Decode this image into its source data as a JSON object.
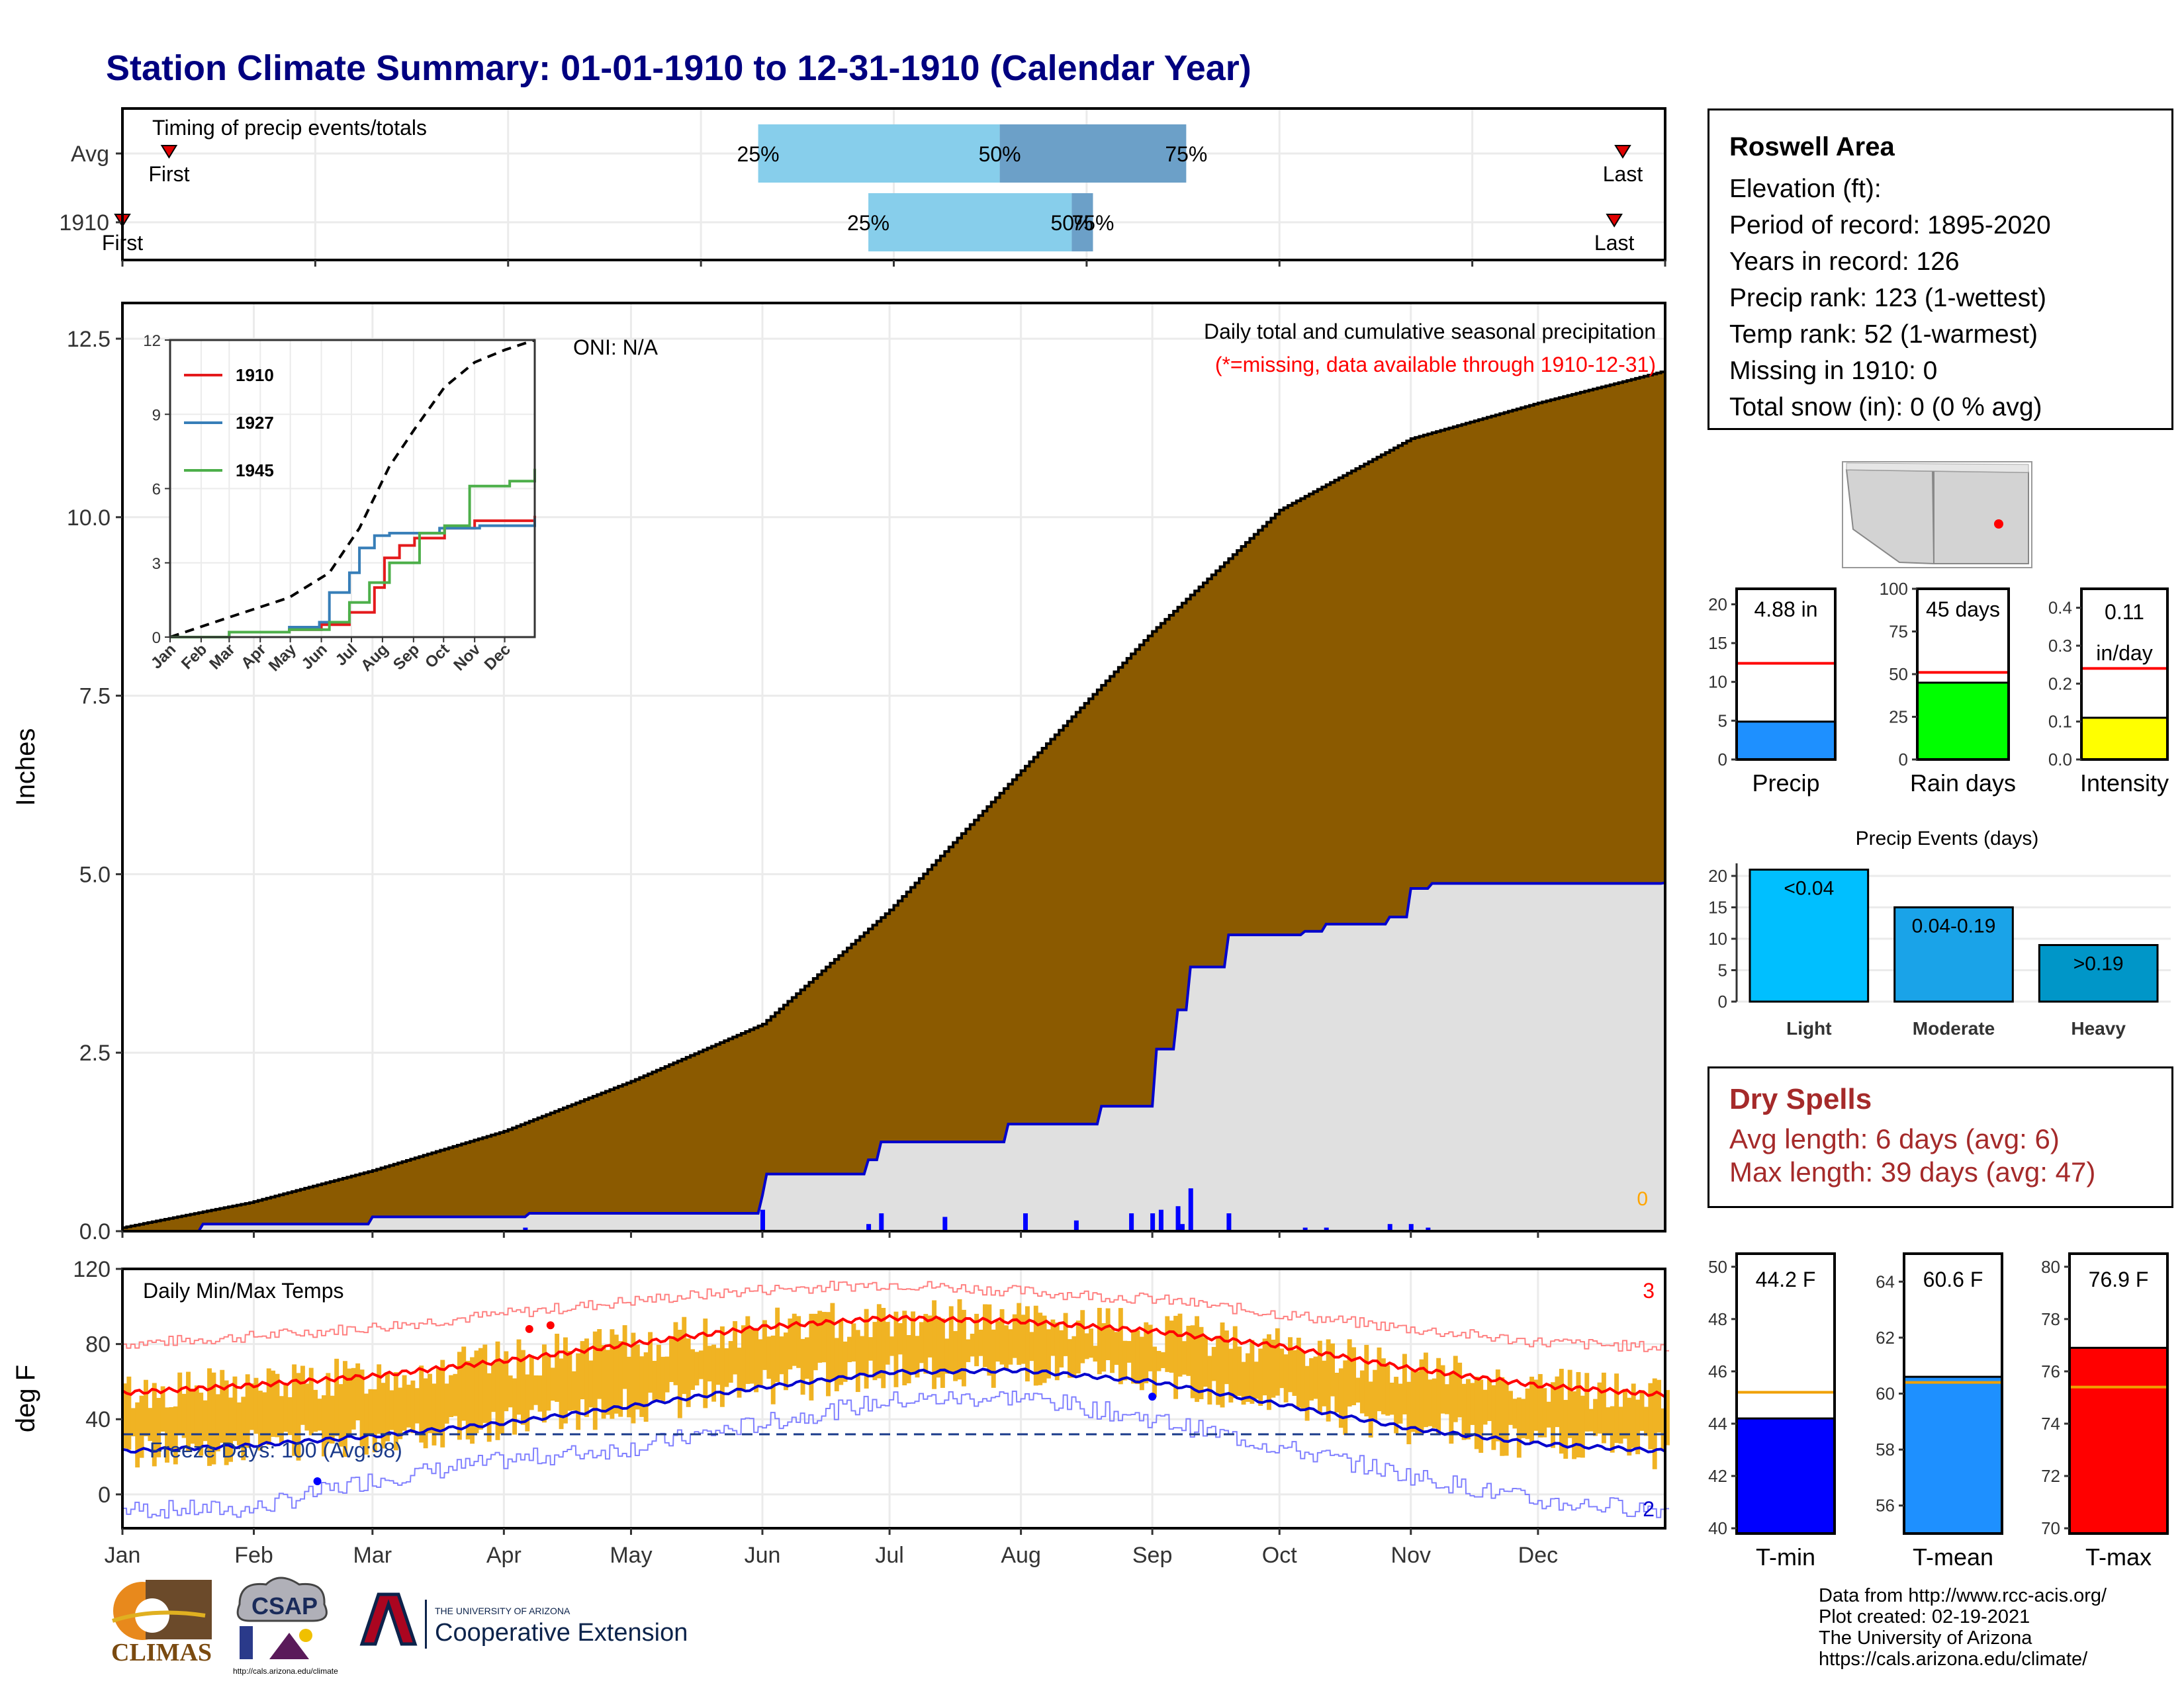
{
  "title": "Station Climate Summary: 01-01-1910 to 12-31-1910 (Calendar Year)",
  "station": {
    "name": "Roswell Area",
    "lines": [
      "Elevation (ft):",
      "Period of record: 1895-2020",
      "Years in record: 126",
      "Precip rank: 123 (1-wettest)",
      "Temp rank: 52 (1-warmest)",
      "Missing in 1910: 0",
      "Total snow (in): 0 (0 % avg)"
    ]
  },
  "dry_spells": {
    "title": "Dry Spells",
    "avg_length": "Avg length: 6 days (avg: 6)",
    "max_length": "Max length: 39 days (avg: 47)"
  },
  "credits": [
    "Data from http://www.rcc-acis.org/",
    "Plot created: 02-19-2021",
    "The University of Arizona",
    "https://cals.arizona.edu/climate/"
  ],
  "logos": {
    "climas": "CLIMAS",
    "csap": "CSAP",
    "csap_url": "http://cals.arizona.edu/climate",
    "ua_small": "THE UNIVERSITY OF ARIZONA",
    "ua_big": "Cooperative Extension"
  },
  "months": [
    "Jan",
    "Feb",
    "Mar",
    "Apr",
    "May",
    "Jun",
    "Jul",
    "Aug",
    "Sep",
    "Oct",
    "Nov",
    "Dec"
  ],
  "colors": {
    "avg_fill": "#8b5a00",
    "year_fill": "#e0e0e0",
    "year_line": "#0000cd",
    "temp_band": "#f0b323",
    "tmax_line": "#ff0000",
    "tmin_line": "#0000cd",
    "light_blue": "#87ceeb",
    "mid_blue": "#6ca0c8"
  },
  "chart_data": [
    {
      "id": "timing",
      "type": "bar",
      "title": "Timing of precip events/totals",
      "rows": [
        "Avg",
        "1910"
      ],
      "labels": {
        "p25": "25%",
        "p50": "50%",
        "p75": "75%",
        "first": "First",
        "last": "Last"
      },
      "avg": {
        "first_day": 12,
        "p25_day": 151,
        "p50_day": 208,
        "p75_day": 252,
        "last_day": 355
      },
      "year": {
        "first_day": 1,
        "p25_day": 177,
        "p50_day": 225,
        "p75_day": 230,
        "last_day": 353
      }
    },
    {
      "id": "precip",
      "type": "area",
      "ylabel": "Inches",
      "ylim": [
        0,
        13.0
      ],
      "yticks": [
        0.0,
        2.5,
        5.0,
        7.5,
        10.0,
        12.5
      ],
      "ytick_labels": [
        "0.0",
        "2.5",
        "5.0",
        "7.5",
        "10.0",
        "12.5"
      ],
      "annotation_title": "Daily total and cumulative seasonal precipitation",
      "annotation_missing": "(*=missing, data available through 1910-12-31)",
      "oni": "ONI: N/A",
      "missing_count": "0",
      "avg_cumulative": {
        "day": [
          1,
          31,
          60,
          91,
          121,
          152,
          182,
          213,
          244,
          274,
          305,
          335,
          365
        ],
        "value": [
          0.05,
          0.4,
          0.85,
          1.4,
          2.1,
          2.9,
          4.5,
          6.45,
          8.4,
          10.1,
          11.1,
          11.6,
          12.05
        ]
      },
      "year_cumulative": {
        "day": [
          1,
          20,
          60,
          96,
          97,
          125,
          152,
          153,
          175,
          177,
          180,
          210,
          232,
          245,
          250,
          253,
          262,
          280,
          285,
          300,
          305,
          310,
          365
        ],
        "value": [
          0.0,
          0.1,
          0.2,
          0.2,
          0.25,
          0.25,
          0.5,
          0.8,
          0.8,
          1.0,
          1.25,
          1.5,
          1.75,
          2.55,
          3.1,
          3.7,
          4.15,
          4.2,
          4.3,
          4.4,
          4.8,
          4.87,
          4.88
        ]
      },
      "daily": {
        "day": [
          96,
          152,
          177,
          180,
          195,
          214,
          226,
          239,
          244,
          246,
          250,
          251,
          253,
          262,
          280,
          285,
          300,
          305,
          309
        ],
        "value": [
          0.05,
          0.3,
          0.1,
          0.25,
          0.2,
          0.25,
          0.15,
          0.25,
          0.25,
          0.3,
          0.35,
          0.1,
          0.6,
          0.25,
          0.05,
          0.05,
          0.1,
          0.1,
          0.05
        ]
      }
    },
    {
      "id": "inset",
      "type": "line",
      "ylim": [
        0,
        12
      ],
      "yticks": [
        0,
        3,
        6,
        9,
        12
      ],
      "series": [
        {
          "name": "1910",
          "color": "#e41a1c",
          "day": [
            1,
            60,
            120,
            152,
            180,
            205,
            215,
            230,
            245,
            275,
            305,
            365
          ],
          "value": [
            0,
            0.2,
            0.3,
            0.5,
            1.0,
            2.0,
            3.2,
            3.7,
            4.0,
            4.4,
            4.7,
            4.9
          ]
        },
        {
          "name": "1927",
          "color": "#377eb8",
          "day": [
            1,
            60,
            120,
            150,
            160,
            180,
            190,
            205,
            220,
            270,
            310,
            365
          ],
          "value": [
            0,
            0.2,
            0.4,
            0.6,
            1.8,
            2.6,
            3.6,
            4.1,
            4.2,
            4.4,
            4.5,
            4.8
          ]
        },
        {
          "name": "1945",
          "color": "#4daf4a",
          "day": [
            1,
            60,
            120,
            160,
            180,
            200,
            220,
            250,
            275,
            300,
            340,
            365
          ],
          "value": [
            0,
            0.2,
            0.3,
            0.6,
            1.4,
            2.2,
            3.0,
            4.2,
            4.5,
            6.1,
            6.3,
            6.8
          ]
        }
      ],
      "avg": {
        "day": [
          1,
          60,
          120,
          160,
          190,
          220,
          245,
          275,
          305,
          335,
          365
        ],
        "value": [
          0,
          0.8,
          1.6,
          2.6,
          4.4,
          6.9,
          8.4,
          10.1,
          11.1,
          11.6,
          12.0
        ]
      }
    },
    {
      "id": "temps",
      "type": "line",
      "title": "Daily Min/Max Temps",
      "ylabel": "deg F",
      "ylim": [
        -18,
        120
      ],
      "yticks": [
        0,
        40,
        80,
        120
      ],
      "freeze_label": "Freeze Days: 100 (Avg:98)",
      "freeze_line": 32,
      "record_high_count": "3",
      "record_low_count": "2",
      "tmax_avg": {
        "day": [
          1,
          31,
          60,
          91,
          121,
          152,
          182,
          213,
          244,
          274,
          305,
          335,
          365
        ],
        "value": [
          54,
          58,
          63,
          71,
          80,
          89,
          94,
          92,
          87,
          79,
          67,
          58,
          53
        ]
      },
      "tmin_avg": {
        "day": [
          1,
          31,
          60,
          91,
          121,
          152,
          182,
          213,
          244,
          274,
          305,
          335,
          365
        ],
        "value": [
          23,
          26,
          31,
          38,
          47,
          57,
          65,
          66,
          60,
          48,
          35,
          27,
          23
        ]
      },
      "rec_high": {
        "day": [
          1,
          31,
          60,
          91,
          121,
          152,
          182,
          213,
          244,
          274,
          305,
          335,
          365
        ],
        "value": [
          80,
          84,
          89,
          96,
          103,
          109,
          112,
          108,
          104,
          96,
          88,
          81,
          78
        ]
      },
      "rec_low": {
        "day": [
          1,
          31,
          60,
          91,
          121,
          152,
          182,
          213,
          244,
          274,
          305,
          335,
          365
        ],
        "value": [
          -8,
          -8,
          8,
          18,
          25,
          38,
          50,
          52,
          40,
          25,
          10,
          -4,
          -8
        ]
      }
    },
    {
      "id": "gauge_precip",
      "type": "bar",
      "label": "Precip",
      "value": 4.88,
      "value_text": "4.88 in",
      "avg": 12.4,
      "ylim": [
        0,
        22
      ],
      "yticks": [
        0,
        5,
        10,
        15,
        20
      ],
      "color": "#1e90ff"
    },
    {
      "id": "gauge_raindays",
      "type": "bar",
      "label": "Rain days",
      "value": 45,
      "value_text": "45 days",
      "avg": 51,
      "ylim": [
        0,
        100
      ],
      "yticks": [
        0,
        25,
        50,
        75,
        100
      ],
      "color": "#00ff00"
    },
    {
      "id": "gauge_intensity",
      "type": "bar",
      "label": "Intensity",
      "value": 0.11,
      "value_text": "0.11",
      "value_text2": "in/day",
      "avg": 0.24,
      "ylim": [
        0,
        0.45
      ],
      "yticks": [
        0.0,
        0.1,
        0.2,
        0.3,
        0.4
      ],
      "ytick_labels": [
        "0.0",
        "0.1",
        "0.2",
        "0.3",
        "0.4"
      ],
      "color": "#ffff00"
    },
    {
      "id": "events",
      "type": "bar",
      "title": "Precip Events (days)",
      "categories": [
        "Light",
        "Moderate",
        "Heavy"
      ],
      "bar_labels": [
        "<0.04",
        "0.04-0.19",
        ">0.19"
      ],
      "values": [
        21,
        15,
        9
      ],
      "colors": [
        "#00bfff",
        "#1aa3e8",
        "#0096c8"
      ],
      "ylim": [
        0,
        22
      ],
      "yticks": [
        0,
        5,
        10,
        15,
        20
      ]
    },
    {
      "id": "gauge_tmin",
      "type": "bar",
      "label": "T-min",
      "value": 44.2,
      "value_text": "44.2 F",
      "avg": 45.2,
      "ylim": [
        39.8,
        50.5
      ],
      "yticks": [
        40,
        42,
        44,
        46,
        48,
        50
      ],
      "color": "#0000ff"
    },
    {
      "id": "gauge_tmean",
      "type": "bar",
      "label": "T-mean",
      "value": 60.6,
      "value_text": "60.6 F",
      "avg": 60.4,
      "ylim": [
        55.0,
        65.0
      ],
      "yticks": [
        56,
        58,
        60,
        62,
        64
      ],
      "color": "#1e90ff"
    },
    {
      "id": "gauge_tmax",
      "type": "bar",
      "label": "T-max",
      "value": 76.9,
      "value_text": "76.9 F",
      "avg": 75.4,
      "ylim": [
        69.8,
        80.5
      ],
      "yticks": [
        70,
        72,
        74,
        76,
        78,
        80
      ],
      "color": "#ff0000"
    }
  ]
}
